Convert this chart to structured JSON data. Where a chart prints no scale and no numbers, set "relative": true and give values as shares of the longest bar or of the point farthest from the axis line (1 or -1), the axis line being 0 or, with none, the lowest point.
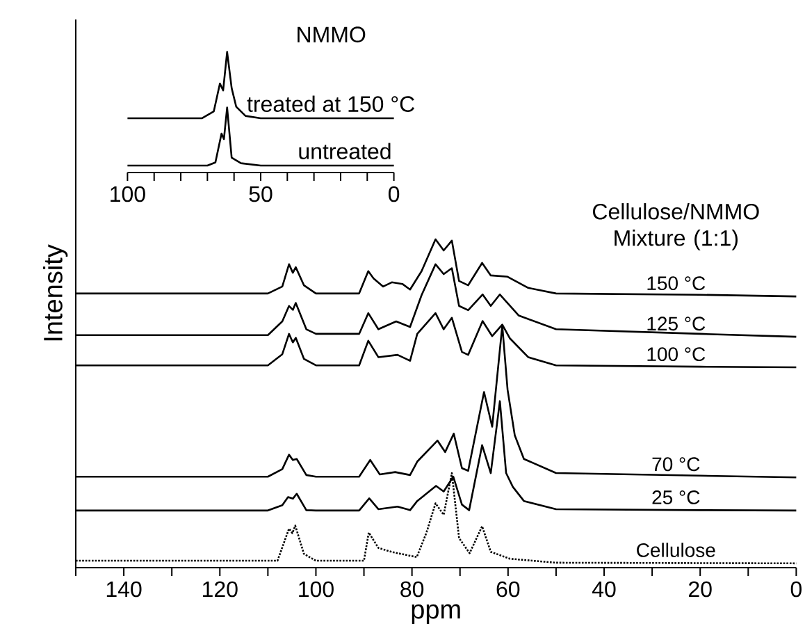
{
  "chart_data": [
    {
      "type": "line",
      "relative": true,
      "xlabel": "ppm",
      "ylabel": "Intensity",
      "tick_labels": "x",
      "line_style": "solid",
      "xlim": [
        150,
        0
      ],
      "xticks": [
        {
          "value": 150,
          "label": null
        },
        140,
        {
          "value": 130,
          "label": null
        },
        120,
        {
          "value": 110,
          "label": null
        },
        100,
        {
          "value": 90,
          "label": null
        },
        80,
        {
          "value": 70,
          "label": null
        },
        60,
        {
          "value": 50,
          "label": null
        },
        40,
        {
          "value": 30,
          "label": null
        },
        20,
        {
          "value": 10,
          "label": null
        },
        0
      ],
      "annotations": [
        "Cellulose/NMMO Mixture (1:1)"
      ],
      "series": [
        {
          "name": "150 °C",
          "color": "#000000",
          "x": [
            150,
            110,
            107,
            105.6,
            104.8,
            104.2,
            102.5,
            100,
            91,
            89.1,
            88,
            86,
            84.2,
            82,
            80.4,
            78,
            75.1,
            73.4,
            71.7,
            70.2,
            68.3,
            65.4,
            63.6,
            60.1,
            55.8,
            50,
            20,
            0
          ],
          "values": [
            0.835,
            0.835,
            0.856,
            0.924,
            0.898,
            0.915,
            0.86,
            0.835,
            0.835,
            0.903,
            0.881,
            0.856,
            0.869,
            0.864,
            0.847,
            0.903,
            1.0,
            0.966,
            0.996,
            0.873,
            0.86,
            0.928,
            0.89,
            0.886,
            0.852,
            0.835,
            0.831,
            0.826
          ]
        },
        {
          "name": "125 °C",
          "color": "#000000",
          "x": [
            150,
            110,
            107,
            105.6,
            104.8,
            104.2,
            102,
            100,
            91,
            89.1,
            87,
            83.3,
            80.4,
            78,
            75.1,
            73.4,
            71.7,
            70.2,
            68.3,
            65.3,
            63.6,
            61.7,
            57.8,
            50,
            20,
            0
          ],
          "values": [
            0.708,
            0.708,
            0.75,
            0.797,
            0.785,
            0.806,
            0.726,
            0.712,
            0.712,
            0.775,
            0.726,
            0.75,
            0.733,
            0.83,
            0.924,
            0.894,
            0.912,
            0.797,
            0.784,
            0.832,
            0.797,
            0.832,
            0.768,
            0.726,
            0.712,
            0.703
          ]
        },
        {
          "name": "100 °C",
          "color": "#000000",
          "x": [
            150,
            110,
            107,
            105.6,
            104.8,
            104.2,
            102.5,
            100,
            91,
            89.1,
            87,
            83,
            80.4,
            78.9,
            75.1,
            73.4,
            71.7,
            69.6,
            68.3,
            65.3,
            63.3,
            61.2,
            59.6,
            55.8,
            50,
            20,
            0
          ],
          "values": [
            0.616,
            0.616,
            0.65,
            0.712,
            0.686,
            0.7,
            0.636,
            0.616,
            0.616,
            0.691,
            0.641,
            0.648,
            0.63,
            0.712,
            0.775,
            0.726,
            0.761,
            0.657,
            0.648,
            0.751,
            0.705,
            0.74,
            0.698,
            0.641,
            0.616,
            0.612,
            0.61
          ]
        },
        {
          "name": "70 °C",
          "color": "#000000",
          "x": [
            150,
            110,
            107,
            105.6,
            104.8,
            104,
            102,
            100,
            91,
            88.7,
            86.7,
            83.5,
            80.4,
            78.9,
            74.7,
            73.1,
            71.3,
            69.6,
            68.3,
            65,
            63.3,
            61.2,
            60.1,
            58.6,
            56.7,
            50,
            20,
            0
          ],
          "values": [
            0.277,
            0.277,
            0.3,
            0.344,
            0.328,
            0.331,
            0.282,
            0.277,
            0.277,
            0.328,
            0.284,
            0.291,
            0.282,
            0.323,
            0.387,
            0.352,
            0.408,
            0.303,
            0.295,
            0.535,
            0.429,
            0.737,
            0.542,
            0.403,
            0.331,
            0.288,
            0.28,
            0.275
          ]
        },
        {
          "name": "25 °C",
          "color": "#000000",
          "x": [
            150,
            110,
            107,
            105.8,
            104.8,
            104,
            102,
            100,
            91,
            88.9,
            87,
            83,
            80.4,
            78.9,
            75,
            73.4,
            71.4,
            69.6,
            68.1,
            65.4,
            63.6,
            61.7,
            60.4,
            59,
            56.7,
            50,
            20,
            0
          ],
          "values": [
            0.174,
            0.174,
            0.19,
            0.215,
            0.21,
            0.225,
            0.175,
            0.174,
            0.174,
            0.211,
            0.178,
            0.186,
            0.175,
            0.203,
            0.249,
            0.232,
            0.277,
            0.192,
            0.175,
            0.373,
            0.288,
            0.507,
            0.288,
            0.246,
            0.203,
            0.178,
            0.175,
            0.174
          ]
        },
        {
          "name": "Cellulose",
          "color": "#000000",
          "line_style": "dotted",
          "x": [
            150,
            108,
            105.6,
            104.9,
            104.3,
            102.5,
            100,
            90,
            89,
            87,
            84,
            79,
            77,
            75.1,
            73.4,
            71.7,
            70.2,
            68,
            65.4,
            63.6,
            59.6,
            50,
            0
          ],
          "values": [
            0.021,
            0.021,
            0.119,
            0.105,
            0.128,
            0.042,
            0.021,
            0.021,
            0.107,
            0.06,
            0.047,
            0.032,
            0.106,
            0.196,
            0.161,
            0.288,
            0.09,
            0.044,
            0.126,
            0.048,
            0.027,
            0.015,
            0.013
          ]
        }
      ]
    },
    {
      "type": "line",
      "relative": true,
      "title": "NMMO",
      "tick_labels": "x",
      "line_style": "solid",
      "xlim": [
        100,
        0
      ],
      "xticks": [
        100,
        {
          "value": 90,
          "label": null
        },
        {
          "value": 80,
          "label": null
        },
        {
          "value": 70,
          "label": null
        },
        {
          "value": 60,
          "label": null
        },
        50,
        {
          "value": 40,
          "label": null
        },
        {
          "value": 30,
          "label": null
        },
        {
          "value": 20,
          "label": null
        },
        {
          "value": 10,
          "label": null
        },
        0
      ],
      "series": [
        {
          "name": "treated at 150 °C",
          "color": "#000000",
          "x": [
            100,
            72,
            67.6,
            65.3,
            64.1,
            62.6,
            60.9,
            59.2,
            55.7,
            50,
            0
          ],
          "values": [
            0.45,
            0.45,
            0.507,
            0.738,
            0.68,
            1.0,
            0.7,
            0.546,
            0.469,
            0.45,
            0.45
          ]
        },
        {
          "name": "untreated",
          "color": "#000000",
          "x": [
            100,
            70,
            67,
            64.7,
            63.8,
            62.6,
            60.9,
            57.4,
            50,
            0
          ],
          "values": [
            0.058,
            0.058,
            0.084,
            0.323,
            0.277,
            0.539,
            0.123,
            0.077,
            0.058,
            0.058
          ]
        }
      ]
    }
  ]
}
